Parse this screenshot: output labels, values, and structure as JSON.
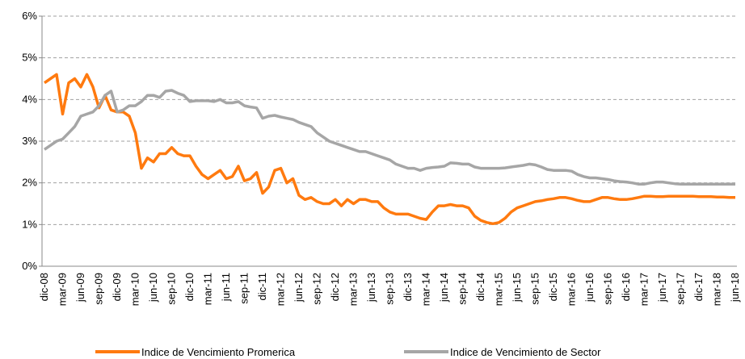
{
  "chart_data": {
    "type": "line",
    "categories": [
      "dic-08",
      null,
      null,
      "mar-09",
      null,
      null,
      "jun-09",
      null,
      null,
      "sep-09",
      null,
      null,
      "dic-09",
      null,
      null,
      "mar-10",
      null,
      null,
      "jun-10",
      null,
      null,
      "sep-10",
      null,
      null,
      "dic-10",
      null,
      null,
      "mar-11",
      null,
      null,
      "jun-11",
      null,
      null,
      "sep-11",
      null,
      null,
      "dic-11",
      null,
      null,
      "mar-12",
      null,
      null,
      "jun-12",
      null,
      null,
      "sep-12",
      null,
      null,
      "dic-12",
      null,
      null,
      "mar-13",
      null,
      null,
      "jun-13",
      null,
      null,
      "sep-13",
      null,
      null,
      "dic-13",
      null,
      null,
      "mar-14",
      null,
      null,
      "jun-14",
      null,
      null,
      "sep-14",
      null,
      null,
      "dic-14",
      null,
      null,
      "mar-15",
      null,
      null,
      "jun-15",
      null,
      null,
      "sep-15",
      null,
      null,
      "dic-15",
      null,
      null,
      "mar-16",
      null,
      null,
      "jun-16",
      null,
      null,
      "sep-16",
      null,
      null,
      "dic-16",
      null,
      null,
      "mar-17",
      null,
      null,
      "jun-17",
      null,
      null,
      "sep-17",
      null,
      null,
      "dic-17",
      null,
      null,
      "mar-18",
      null,
      null,
      "jun-18"
    ],
    "series": [
      {
        "name": "Indice de Vencimiento Promerica",
        "color": "#ff7a0f",
        "values": [
          4.4,
          4.5,
          4.6,
          3.65,
          4.4,
          4.5,
          4.3,
          4.6,
          4.3,
          3.8,
          4.1,
          3.75,
          3.7,
          3.7,
          3.6,
          3.2,
          2.35,
          2.6,
          2.5,
          2.7,
          2.7,
          2.85,
          2.7,
          2.65,
          2.65,
          2.4,
          2.2,
          2.1,
          2.2,
          2.3,
          2.1,
          2.15,
          2.4,
          2.05,
          2.1,
          2.25,
          1.75,
          1.9,
          2.3,
          2.35,
          2.0,
          2.1,
          1.7,
          1.6,
          1.65,
          1.55,
          1.5,
          1.5,
          1.6,
          1.45,
          1.6,
          1.5,
          1.6,
          1.6,
          1.55,
          1.55,
          1.4,
          1.3,
          1.25,
          1.25,
          1.25,
          1.2,
          1.15,
          1.12,
          1.3,
          1.45,
          1.45,
          1.48,
          1.45,
          1.45,
          1.4,
          1.2,
          1.1,
          1.05,
          1.02,
          1.05,
          1.15,
          1.3,
          1.4,
          1.45,
          1.5,
          1.55,
          1.57,
          1.6,
          1.62,
          1.65,
          1.65,
          1.62,
          1.58,
          1.55,
          1.55,
          1.6,
          1.65,
          1.65,
          1.62,
          1.6,
          1.6,
          1.62,
          1.65,
          1.68,
          1.68,
          1.67,
          1.67,
          1.68,
          1.68,
          1.68,
          1.68,
          1.68,
          1.67,
          1.67,
          1.67,
          1.66,
          1.66,
          1.65,
          1.65
        ]
      },
      {
        "name": "Indice de Vencimiento de Sector",
        "color": "#a6a6a6",
        "values": [
          2.8,
          2.9,
          3.0,
          3.05,
          3.2,
          3.35,
          3.6,
          3.65,
          3.7,
          3.85,
          4.1,
          4.2,
          3.7,
          3.75,
          3.85,
          3.85,
          3.95,
          4.1,
          4.1,
          4.05,
          4.2,
          4.22,
          4.15,
          4.1,
          3.95,
          3.97,
          3.97,
          3.97,
          3.95,
          4.0,
          3.92,
          3.92,
          3.95,
          3.85,
          3.82,
          3.8,
          3.55,
          3.6,
          3.62,
          3.58,
          3.55,
          3.52,
          3.45,
          3.4,
          3.35,
          3.2,
          3.1,
          3.0,
          2.95,
          2.9,
          2.85,
          2.8,
          2.75,
          2.75,
          2.7,
          2.65,
          2.6,
          2.55,
          2.45,
          2.4,
          2.35,
          2.35,
          2.3,
          2.35,
          2.37,
          2.38,
          2.4,
          2.48,
          2.47,
          2.45,
          2.45,
          2.38,
          2.35,
          2.35,
          2.35,
          2.35,
          2.36,
          2.38,
          2.4,
          2.42,
          2.45,
          2.43,
          2.38,
          2.32,
          2.3,
          2.3,
          2.3,
          2.28,
          2.2,
          2.15,
          2.12,
          2.12,
          2.1,
          2.08,
          2.05,
          2.03,
          2.02,
          2.0,
          1.97,
          1.97,
          2.0,
          2.02,
          2.02,
          2.0,
          1.98,
          1.97,
          1.97,
          1.97,
          1.97,
          1.97,
          1.97,
          1.97,
          1.97,
          1.97,
          1.97
        ]
      }
    ],
    "ylim": [
      0,
      6
    ],
    "yticks": [
      {
        "value": 0,
        "label": "0%"
      },
      {
        "value": 1,
        "label": "1%"
      },
      {
        "value": 2,
        "label": "2%"
      },
      {
        "value": 3,
        "label": "3%"
      },
      {
        "value": 4,
        "label": "4%"
      },
      {
        "value": 5,
        "label": "5%"
      },
      {
        "value": 6,
        "label": "6%"
      }
    ],
    "grid": true,
    "legend": "bottom"
  }
}
